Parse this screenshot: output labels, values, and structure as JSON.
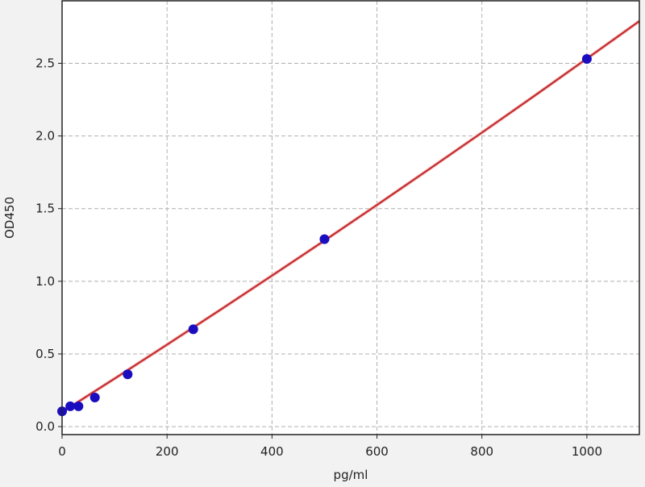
{
  "chart_data": {
    "type": "scatter",
    "title": "",
    "xlabel": "pg/ml",
    "ylabel": "OD450",
    "xlim": [
      0,
      1100
    ],
    "ylim": [
      -0.055,
      2.93
    ],
    "xticks": [
      0,
      200,
      400,
      600,
      800,
      1000
    ],
    "xtick_labels": [
      "0",
      "200",
      "400",
      "600",
      "800",
      "1000"
    ],
    "yticks": [
      0.0,
      0.5,
      1.0,
      1.5,
      2.0,
      2.5
    ],
    "ytick_labels": [
      "0.0",
      "0.5",
      "1.0",
      "1.5",
      "2.0",
      "2.5"
    ],
    "grid": true,
    "series": [
      {
        "kind": "points",
        "color": "#1a0dbf",
        "x": [
          0,
          15.6,
          31.25,
          62.5,
          125,
          250,
          500,
          1000
        ],
        "y": [
          0.105,
          0.14,
          0.14,
          0.2,
          0.36,
          0.67,
          1.29,
          2.53
        ]
      },
      {
        "kind": "fit-curve",
        "color": "#c0282a",
        "x": [
          0,
          100,
          200,
          300,
          400,
          500,
          600,
          700,
          800,
          900,
          1000,
          1100
        ],
        "y": [
          0.1,
          0.33,
          0.564,
          0.8,
          1.039,
          1.28,
          1.525,
          1.773,
          2.023,
          2.276,
          2.532,
          2.79
        ]
      }
    ]
  }
}
